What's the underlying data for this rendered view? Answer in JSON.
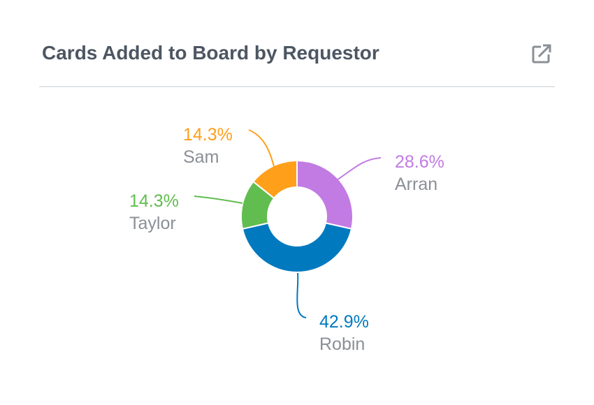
{
  "header": {
    "title": "Cards Added to Board by Requestor",
    "expand_icon": "open-in-new-icon"
  },
  "chart_data": {
    "type": "pie",
    "variant": "donut",
    "title": "Cards Added to Board by Requestor",
    "slices": [
      {
        "name": "Arran",
        "value": 28.6,
        "label": "28.6%",
        "color": "#c27be3"
      },
      {
        "name": "Robin",
        "value": 42.9,
        "label": "42.9%",
        "color": "#0079bf"
      },
      {
        "name": "Taylor",
        "value": 14.3,
        "label": "14.3%",
        "color": "#61bd4f"
      },
      {
        "name": "Sam",
        "value": 14.3,
        "label": "14.3%",
        "color": "#ff9f1a"
      }
    ],
    "legend": "none"
  },
  "colors": {
    "title": "#4d5662",
    "name_label": "#8b8f96",
    "divider": "#e3e5e8",
    "icon": "#8b8f96"
  }
}
